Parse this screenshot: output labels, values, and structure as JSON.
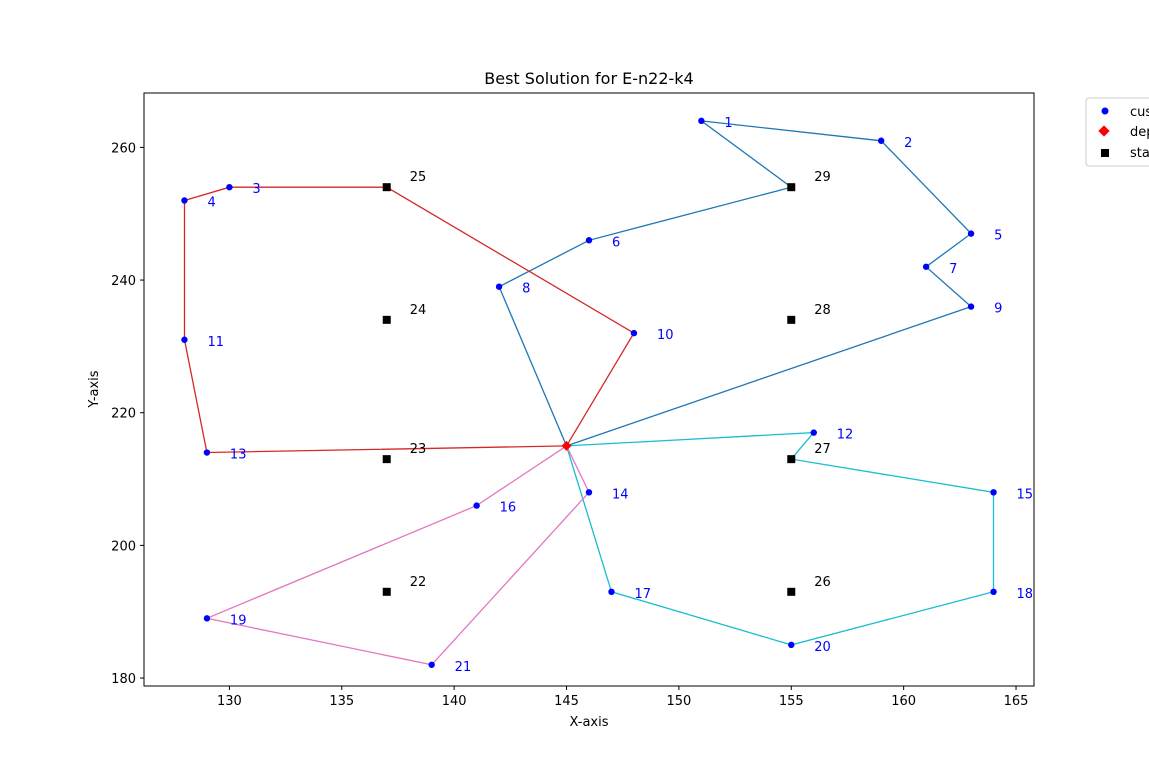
{
  "chart_data": {
    "type": "scatter",
    "title": "Best Solution for E-n22-k4",
    "xlabel": "X-axis",
    "ylabel": "Y-axis",
    "xlim": [
      126.2,
      165.8
    ],
    "ylim": [
      178.8,
      268.2
    ],
    "xticks": [
      130,
      135,
      140,
      145,
      150,
      155,
      160,
      165
    ],
    "yticks": [
      180,
      200,
      220,
      240,
      260
    ],
    "grid": false,
    "legend": {
      "placement": "top-right-outside",
      "entries": [
        {
          "label": "customers",
          "marker": "circle",
          "color": "#0000ff"
        },
        {
          "label": "depot",
          "marker": "diamond",
          "color": "#ff0000"
        },
        {
          "label": "stations",
          "marker": "square",
          "color": "#000000"
        }
      ]
    },
    "depot": {
      "x": 145,
      "y": 215
    },
    "customers": [
      {
        "id": "1",
        "x": 151,
        "y": 264
      },
      {
        "id": "2",
        "x": 159,
        "y": 261
      },
      {
        "id": "3",
        "x": 130,
        "y": 254
      },
      {
        "id": "4",
        "x": 128,
        "y": 252
      },
      {
        "id": "5",
        "x": 163,
        "y": 247
      },
      {
        "id": "6",
        "x": 146,
        "y": 246
      },
      {
        "id": "7",
        "x": 161,
        "y": 242
      },
      {
        "id": "8",
        "x": 142,
        "y": 239
      },
      {
        "id": "9",
        "x": 163,
        "y": 236
      },
      {
        "id": "10",
        "x": 148,
        "y": 232
      },
      {
        "id": "11",
        "x": 128,
        "y": 231
      },
      {
        "id": "12",
        "x": 156,
        "y": 217
      },
      {
        "id": "13",
        "x": 129,
        "y": 214
      },
      {
        "id": "14",
        "x": 146,
        "y": 208
      },
      {
        "id": "15",
        "x": 164,
        "y": 208
      },
      {
        "id": "16",
        "x": 141,
        "y": 206
      },
      {
        "id": "17",
        "x": 147,
        "y": 193
      },
      {
        "id": "18",
        "x": 164,
        "y": 193
      },
      {
        "id": "19",
        "x": 129,
        "y": 189
      },
      {
        "id": "20",
        "x": 155,
        "y": 185
      },
      {
        "id": "21",
        "x": 139,
        "y": 182
      }
    ],
    "stations": [
      {
        "id": "22",
        "x": 137,
        "y": 193
      },
      {
        "id": "23",
        "x": 137,
        "y": 213
      },
      {
        "id": "24",
        "x": 137,
        "y": 234
      },
      {
        "id": "25",
        "x": 137,
        "y": 254
      },
      {
        "id": "26",
        "x": 155,
        "y": 193
      },
      {
        "id": "27",
        "x": 155,
        "y": 213
      },
      {
        "id": "28",
        "x": 155,
        "y": 234
      },
      {
        "id": "29",
        "x": 155,
        "y": 254
      }
    ],
    "routes": [
      {
        "color": "#1f77b4",
        "path": [
          [
            145,
            215
          ],
          [
            142,
            239
          ],
          [
            146,
            246
          ],
          [
            155,
            254
          ],
          [
            151,
            264
          ],
          [
            159,
            261
          ],
          [
            163,
            247
          ],
          [
            161,
            242
          ],
          [
            163,
            236
          ],
          [
            145,
            215
          ]
        ]
      },
      {
        "color": "#d62728",
        "path": [
          [
            145,
            215
          ],
          [
            148,
            232
          ],
          [
            137,
            254
          ],
          [
            130,
            254
          ],
          [
            128,
            252
          ],
          [
            128,
            231
          ],
          [
            129,
            214
          ],
          [
            145,
            215
          ]
        ]
      },
      {
        "color": "#17becf",
        "path": [
          [
            145,
            215
          ],
          [
            156,
            217
          ],
          [
            155,
            213
          ],
          [
            164,
            208
          ],
          [
            164,
            193
          ],
          [
            155,
            185
          ],
          [
            147,
            193
          ],
          [
            145,
            215
          ]
        ]
      },
      {
        "color": "#e377c2",
        "path": [
          [
            145,
            215
          ],
          [
            141,
            206
          ],
          [
            129,
            189
          ],
          [
            139,
            182
          ],
          [
            146,
            208
          ],
          [
            145,
            215
          ]
        ]
      }
    ]
  }
}
